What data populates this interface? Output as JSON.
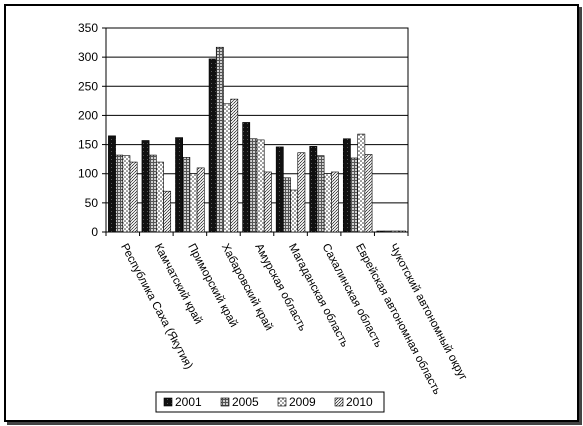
{
  "chart_data": {
    "type": "bar",
    "title": "",
    "xlabel": "",
    "ylabel": "",
    "ylim": [
      0,
      350
    ],
    "yticks": [
      0,
      50,
      100,
      150,
      200,
      250,
      300,
      350
    ],
    "grid": true,
    "legend_position": "bottom",
    "categories": [
      "Республика Саха (Якутия)",
      "Камчатский край",
      "Приморский край",
      "Хабаровский край",
      "Амурская область",
      "Магаданская область",
      "Сахалинская область",
      "Еврейская автономная область",
      "Чукотский автономный округ"
    ],
    "series": [
      {
        "name": "2001",
        "values": [
          165,
          157,
          162,
          297,
          188,
          146,
          147,
          160,
          1
        ],
        "color": "#111111",
        "pattern": "solid"
      },
      {
        "name": "2005",
        "values": [
          132,
          132,
          128,
          317,
          160,
          93,
          131,
          127,
          1
        ],
        "color": "#8a8a8a",
        "pattern": "grid"
      },
      {
        "name": "2009",
        "values": [
          131,
          120,
          100,
          220,
          158,
          72,
          100,
          168,
          1
        ],
        "color": "#bdbdbd",
        "pattern": "dots"
      },
      {
        "name": "2010",
        "values": [
          120,
          70,
          110,
          228,
          103,
          136,
          103,
          133,
          1
        ],
        "color": "#d9d9d9",
        "pattern": "dense"
      }
    ]
  }
}
